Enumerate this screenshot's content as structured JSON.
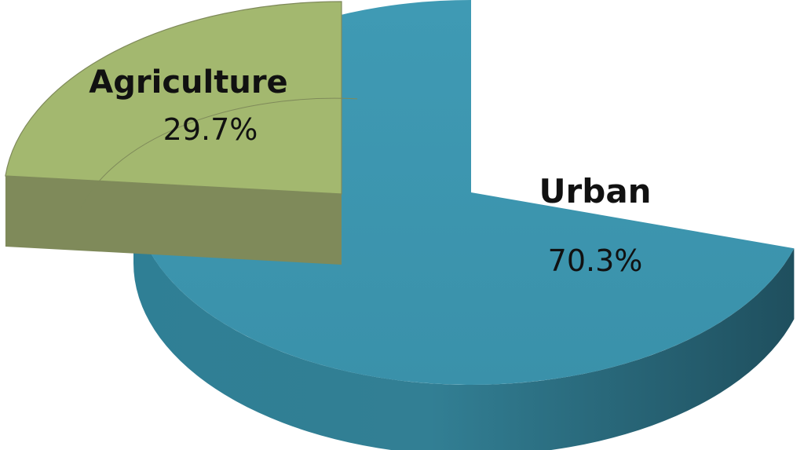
{
  "chart_data": {
    "type": "pie",
    "style": "3d-exploded",
    "slices": [
      {
        "label": "Agriculture",
        "value": 29.7,
        "value_label": "29.7%",
        "color": "#a3b86f",
        "side_color": "#7f8a5a"
      },
      {
        "label": "Urban",
        "value": 70.3,
        "value_label": "70.3%",
        "color": "#3f97b1",
        "side_color": "#2a6e82"
      }
    ],
    "legend": "none",
    "data_labels": "inside"
  }
}
